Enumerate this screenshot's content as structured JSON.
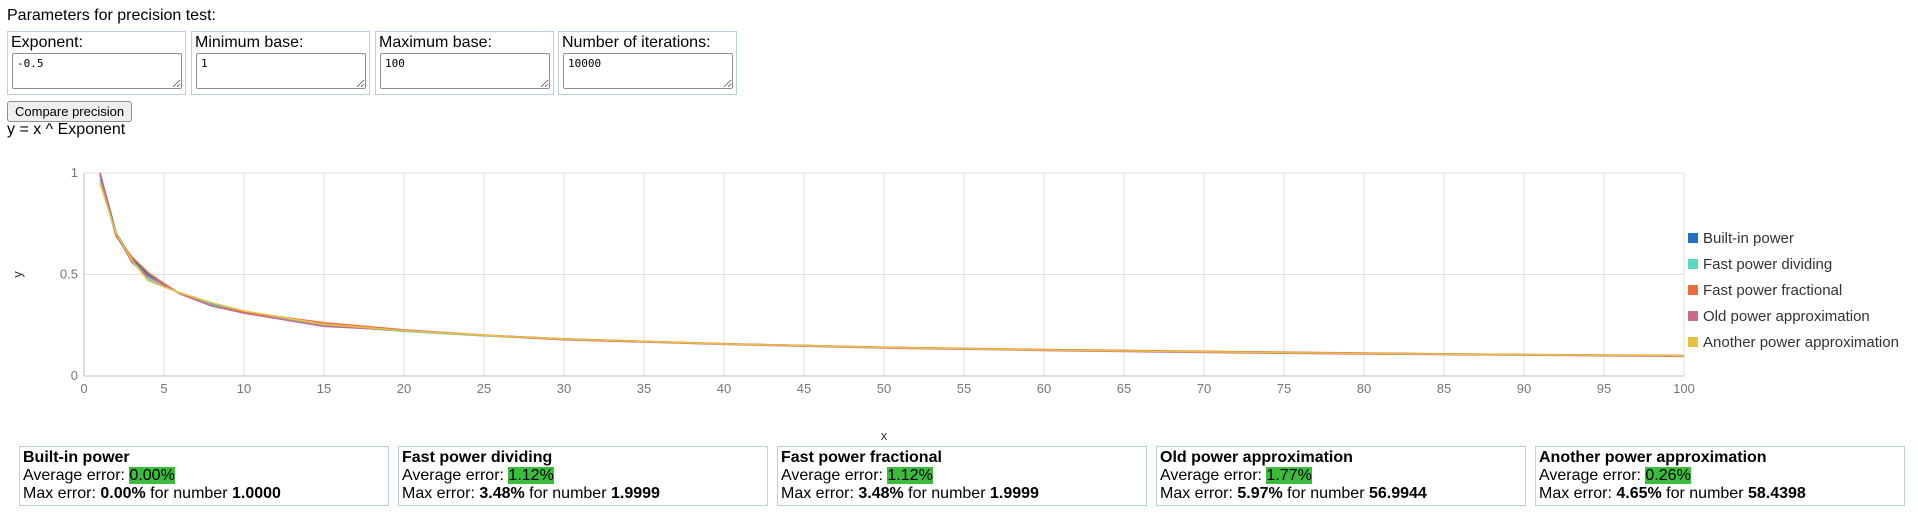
{
  "heading": "Parameters for precision test:",
  "params": [
    {
      "label": "Exponent:",
      "value": "-0.5"
    },
    {
      "label": "Minimum base:",
      "value": "1"
    },
    {
      "label": "Maximum base:",
      "value": "100"
    },
    {
      "label": "Number of iterations:",
      "value": "10000"
    }
  ],
  "button_label": "Compare precision",
  "formula": "y = x ^ Exponent",
  "chart_data": {
    "type": "line",
    "xlabel": "x",
    "ylabel": "y",
    "xlim": [
      0,
      100
    ],
    "ylim": [
      0,
      1
    ],
    "x_ticks": [
      0,
      5,
      10,
      15,
      20,
      25,
      30,
      35,
      40,
      45,
      50,
      55,
      60,
      65,
      70,
      75,
      80,
      85,
      90,
      95,
      100
    ],
    "y_ticks": [
      0,
      0.5,
      1
    ],
    "grid": true,
    "legend_position": "right",
    "series": [
      {
        "name": "Built-in power",
        "color": "#1f6fc5",
        "points": [
          [
            1,
            1
          ],
          [
            2,
            0.707
          ],
          [
            3,
            0.577
          ],
          [
            4,
            0.5
          ],
          [
            5,
            0.447
          ],
          [
            6,
            0.408
          ],
          [
            8,
            0.354
          ],
          [
            10,
            0.316
          ],
          [
            15,
            0.258
          ],
          [
            20,
            0.224
          ],
          [
            25,
            0.2
          ],
          [
            30,
            0.183
          ],
          [
            40,
            0.158
          ],
          [
            50,
            0.141
          ],
          [
            60,
            0.129
          ],
          [
            70,
            0.12
          ],
          [
            80,
            0.112
          ],
          [
            90,
            0.105
          ],
          [
            100,
            0.1
          ]
        ]
      },
      {
        "name": "Fast power dividing",
        "color": "#5bd6c4",
        "points": [
          [
            1,
            0.97
          ],
          [
            2,
            0.69
          ],
          [
            3,
            0.57
          ],
          [
            4,
            0.48
          ],
          [
            5,
            0.44
          ],
          [
            6,
            0.41
          ],
          [
            8,
            0.35
          ],
          [
            10,
            0.315
          ],
          [
            15,
            0.25
          ],
          [
            20,
            0.22
          ],
          [
            25,
            0.198
          ],
          [
            30,
            0.181
          ],
          [
            40,
            0.157
          ],
          [
            50,
            0.14
          ],
          [
            60,
            0.127
          ],
          [
            70,
            0.118
          ],
          [
            80,
            0.11
          ],
          [
            90,
            0.104
          ],
          [
            100,
            0.099
          ]
        ]
      },
      {
        "name": "Fast power fractional",
        "color": "#ee6b3b",
        "points": [
          [
            1,
            1.0
          ],
          [
            2,
            0.69
          ],
          [
            3,
            0.585
          ],
          [
            4,
            0.51
          ],
          [
            5,
            0.455
          ],
          [
            6,
            0.405
          ],
          [
            8,
            0.345
          ],
          [
            10,
            0.315
          ],
          [
            15,
            0.262
          ],
          [
            20,
            0.227
          ],
          [
            25,
            0.201
          ],
          [
            30,
            0.183
          ],
          [
            40,
            0.159
          ],
          [
            50,
            0.142
          ],
          [
            60,
            0.13
          ],
          [
            70,
            0.121
          ],
          [
            80,
            0.113
          ],
          [
            90,
            0.106
          ],
          [
            100,
            0.101
          ]
        ]
      },
      {
        "name": "Old power approximation",
        "color": "#c86a8c",
        "points": [
          [
            1,
            0.99
          ],
          [
            2,
            0.7
          ],
          [
            3,
            0.56
          ],
          [
            4,
            0.49
          ],
          [
            5,
            0.45
          ],
          [
            6,
            0.405
          ],
          [
            8,
            0.345
          ],
          [
            10,
            0.31
          ],
          [
            15,
            0.245
          ],
          [
            20,
            0.225
          ],
          [
            25,
            0.199
          ],
          [
            30,
            0.179
          ],
          [
            40,
            0.156
          ],
          [
            50,
            0.138
          ],
          [
            60,
            0.126
          ],
          [
            70,
            0.116
          ],
          [
            80,
            0.109
          ],
          [
            90,
            0.103
          ],
          [
            100,
            0.097
          ]
        ]
      },
      {
        "name": "Another power approximation",
        "color": "#e8c040",
        "points": [
          [
            1,
            0.95
          ],
          [
            2,
            0.705
          ],
          [
            3,
            0.57
          ],
          [
            4,
            0.47
          ],
          [
            5,
            0.44
          ],
          [
            6,
            0.41
          ],
          [
            8,
            0.36
          ],
          [
            10,
            0.32
          ],
          [
            15,
            0.255
          ],
          [
            20,
            0.223
          ],
          [
            25,
            0.2
          ],
          [
            30,
            0.182
          ],
          [
            40,
            0.158
          ],
          [
            50,
            0.141
          ],
          [
            60,
            0.128
          ],
          [
            70,
            0.119
          ],
          [
            80,
            0.111
          ],
          [
            90,
            0.105
          ],
          [
            100,
            0.1
          ]
        ]
      }
    ]
  },
  "stats": [
    {
      "name": "Built-in power",
      "avg_label": "Average error: ",
      "avg": "0.00%",
      "max_label": "Max error: ",
      "max": "0.00%",
      "for_label": " for number ",
      "number": "1.0000"
    },
    {
      "name": "Fast power dividing",
      "avg_label": "Average error: ",
      "avg": "1.12%",
      "max_label": "Max error: ",
      "max": "3.48%",
      "for_label": " for number ",
      "number": "1.9999"
    },
    {
      "name": "Fast power fractional",
      "avg_label": "Average error: ",
      "avg": "1.12%",
      "max_label": "Max error: ",
      "max": "3.48%",
      "for_label": " for number ",
      "number": "1.9999"
    },
    {
      "name": "Old power approximation",
      "avg_label": "Average error: ",
      "avg": "1.77%",
      "max_label": "Max error: ",
      "max": "5.97%",
      "for_label": " for number ",
      "number": "56.9944"
    },
    {
      "name": "Another power approximation",
      "avg_label": "Average error: ",
      "avg": "0.26%",
      "max_label": "Max error: ",
      "max": "4.65%",
      "for_label": " for number ",
      "number": "58.4398"
    }
  ]
}
